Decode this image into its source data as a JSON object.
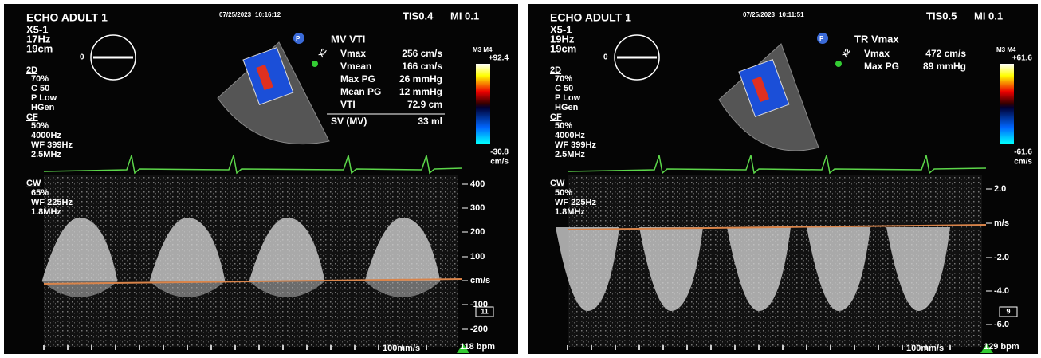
{
  "panels": [
    {
      "header": {
        "title": "ECHO ADULT 1",
        "date": "07/25/2023",
        "time": "10:16:12",
        "tis": "TIS0.4",
        "mi": "MI 0.1"
      },
      "settings": [
        "X5-1",
        "17Hz",
        "19cm",
        "2D",
        "70%",
        "C 50",
        "P Low",
        "HGen",
        "CF",
        "50%",
        "4000Hz",
        "WF 399Hz",
        "2.5MHz",
        "CW",
        "65%",
        "WF 225Hz",
        "1.8MHz"
      ],
      "depth_marker": "0",
      "probe_badge": "P",
      "zoom": "X2",
      "measurements": {
        "title": "MV VTI",
        "rows": [
          [
            "Vmax",
            "256 cm/s"
          ],
          [
            "Vmean",
            "166 cm/s"
          ],
          [
            "Max PG",
            "26 mmHg"
          ],
          [
            "Mean PG",
            "12 mmHg"
          ],
          [
            "VTI",
            "72.9 cm"
          ]
        ],
        "summary": [
          "SV (MV)",
          "33 ml"
        ]
      },
      "color_bar": {
        "map": "M3 M4",
        "top": "+92.4",
        "bottom": "-30.8",
        "unit": "cm/s"
      },
      "scale": [
        "400",
        "300",
        "200",
        "100",
        "cm/s",
        "-100",
        "-200"
      ],
      "frame": "11",
      "sweep": "100mm/s",
      "heart_rate": "118 bpm"
    },
    {
      "header": {
        "title": "ECHO ADULT 1",
        "date": "07/25/2023",
        "time": "10:11:51",
        "tis": "TIS0.5",
        "mi": "MI 0.1"
      },
      "settings": [
        "X5-1",
        "19Hz",
        "19cm",
        "2D",
        "70%",
        "C 50",
        "P Low",
        "HGen",
        "CF",
        "50%",
        "4000Hz",
        "WF 399Hz",
        "2.5MHz",
        "CW",
        "50%",
        "WF 225Hz",
        "1.8MHz"
      ],
      "depth_marker": "0",
      "probe_badge": "P",
      "zoom": "X2",
      "measurements": {
        "title": "TR Vmax",
        "rows": [
          [
            "Vmax",
            "472 cm/s"
          ],
          [
            "Max PG",
            "89 mmHg"
          ]
        ]
      },
      "color_bar": {
        "map": "M3 M4",
        "top": "+61.6",
        "bottom": "-61.6",
        "unit": "cm/s"
      },
      "scale": [
        "2.0",
        "m/s",
        "-2.0",
        "-4.0",
        "-6.0"
      ],
      "frame": "9",
      "sweep": "100mm/s",
      "heart_rate": "129 bpm"
    }
  ]
}
